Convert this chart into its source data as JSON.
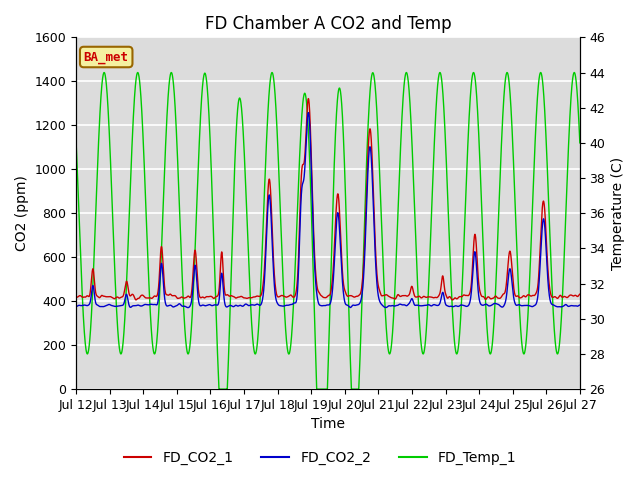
{
  "title": "FD Chamber A CO2 and Temp",
  "xlabel": "Time",
  "ylabel_left": "CO2 (ppm)",
  "ylabel_right": "Temperature (C)",
  "ylim_left": [
    0,
    1600
  ],
  "ylim_right": [
    26,
    46
  ],
  "xlim": [
    0,
    360
  ],
  "xtick_positions": [
    0,
    24,
    48,
    72,
    96,
    120,
    144,
    168,
    192,
    216,
    240,
    264,
    288,
    312,
    336,
    360
  ],
  "xtick_labels": [
    "Jul 12",
    "Jul 13",
    "Jul 14",
    "Jul 15",
    "Jul 16",
    "Jul 17",
    "Jul 18",
    "Jul 19",
    "Jul 20",
    "Jul 21",
    "Jul 22",
    "Jul 23",
    "Jul 24",
    "Jul 25",
    "Jul 26",
    "Jul 27"
  ],
  "legend_entries": [
    "FD_CO2_1",
    "FD_CO2_2",
    "FD_Temp_1"
  ],
  "line_colors": [
    "#cc0000",
    "#0000cc",
    "#00cc00"
  ],
  "annotation_text": "BA_met",
  "annotation_color": "#cc0000",
  "annotation_bg": "#f5f0a0",
  "annotation_border": "#996600",
  "bg_color": "#dcdcdc",
  "fig_bg": "#ffffff",
  "grid_color": "#ffffff",
  "title_fontsize": 12,
  "axis_fontsize": 10,
  "tick_fontsize": 9,
  "legend_fontsize": 10
}
